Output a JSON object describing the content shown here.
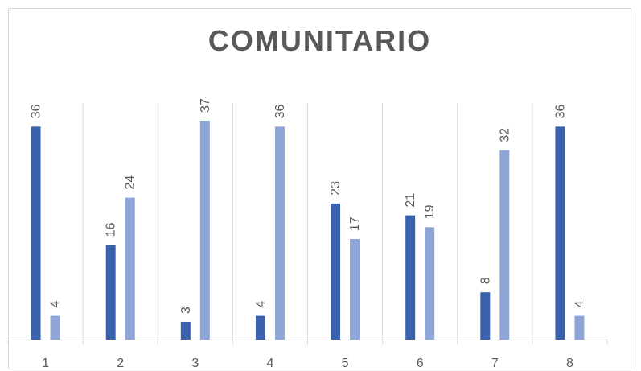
{
  "chart_data": {
    "type": "bar",
    "title": "COMUNITARIO",
    "categories": [
      "1",
      "2",
      "3",
      "4",
      "5",
      "6",
      "7",
      "8"
    ],
    "series": [
      {
        "values": [
          36,
          16,
          3,
          4,
          23,
          21,
          8,
          36
        ],
        "color": "#3a62ac"
      },
      {
        "values": [
          4,
          24,
          37,
          36,
          17,
          19,
          32,
          4
        ],
        "color": "#8fa5d6"
      }
    ],
    "xlabel": "",
    "ylabel": "",
    "ylim": [
      0,
      37
    ],
    "grid": "vertical",
    "legend": "none"
  }
}
